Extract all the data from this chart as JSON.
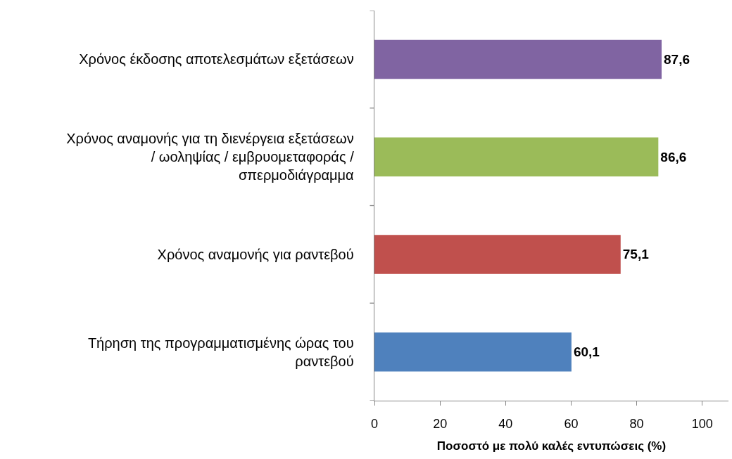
{
  "chart_data": {
    "type": "bar",
    "orientation": "horizontal",
    "categories": [
      "Χρόνος έκδοσης αποτελεσμάτων εξετάσεων",
      "Χρόνος αναμονής για τη διενέργεια εξετάσεων / ωοληψίας / εμβρυομεταφοράς / σπερμοδιάγραμμα",
      "Χρόνος αναμονής για ραντεβού",
      "Τήρηση της προγραμματισμένης ώρας του ραντεβού"
    ],
    "values": [
      87.6,
      86.6,
      75.1,
      60.1
    ],
    "colors": [
      "#8064a2",
      "#9bbb59",
      "#c0504d",
      "#4f81bd"
    ],
    "value_labels": [
      "87,6",
      "86,6",
      "75,1",
      "60,1"
    ],
    "xlabel": "Ποσοστό με πολύ καλές εντυπώσεις (%)",
    "xlim": [
      0,
      108
    ],
    "xticks": [
      0,
      20,
      40,
      60,
      80,
      100
    ],
    "grid": false
  }
}
